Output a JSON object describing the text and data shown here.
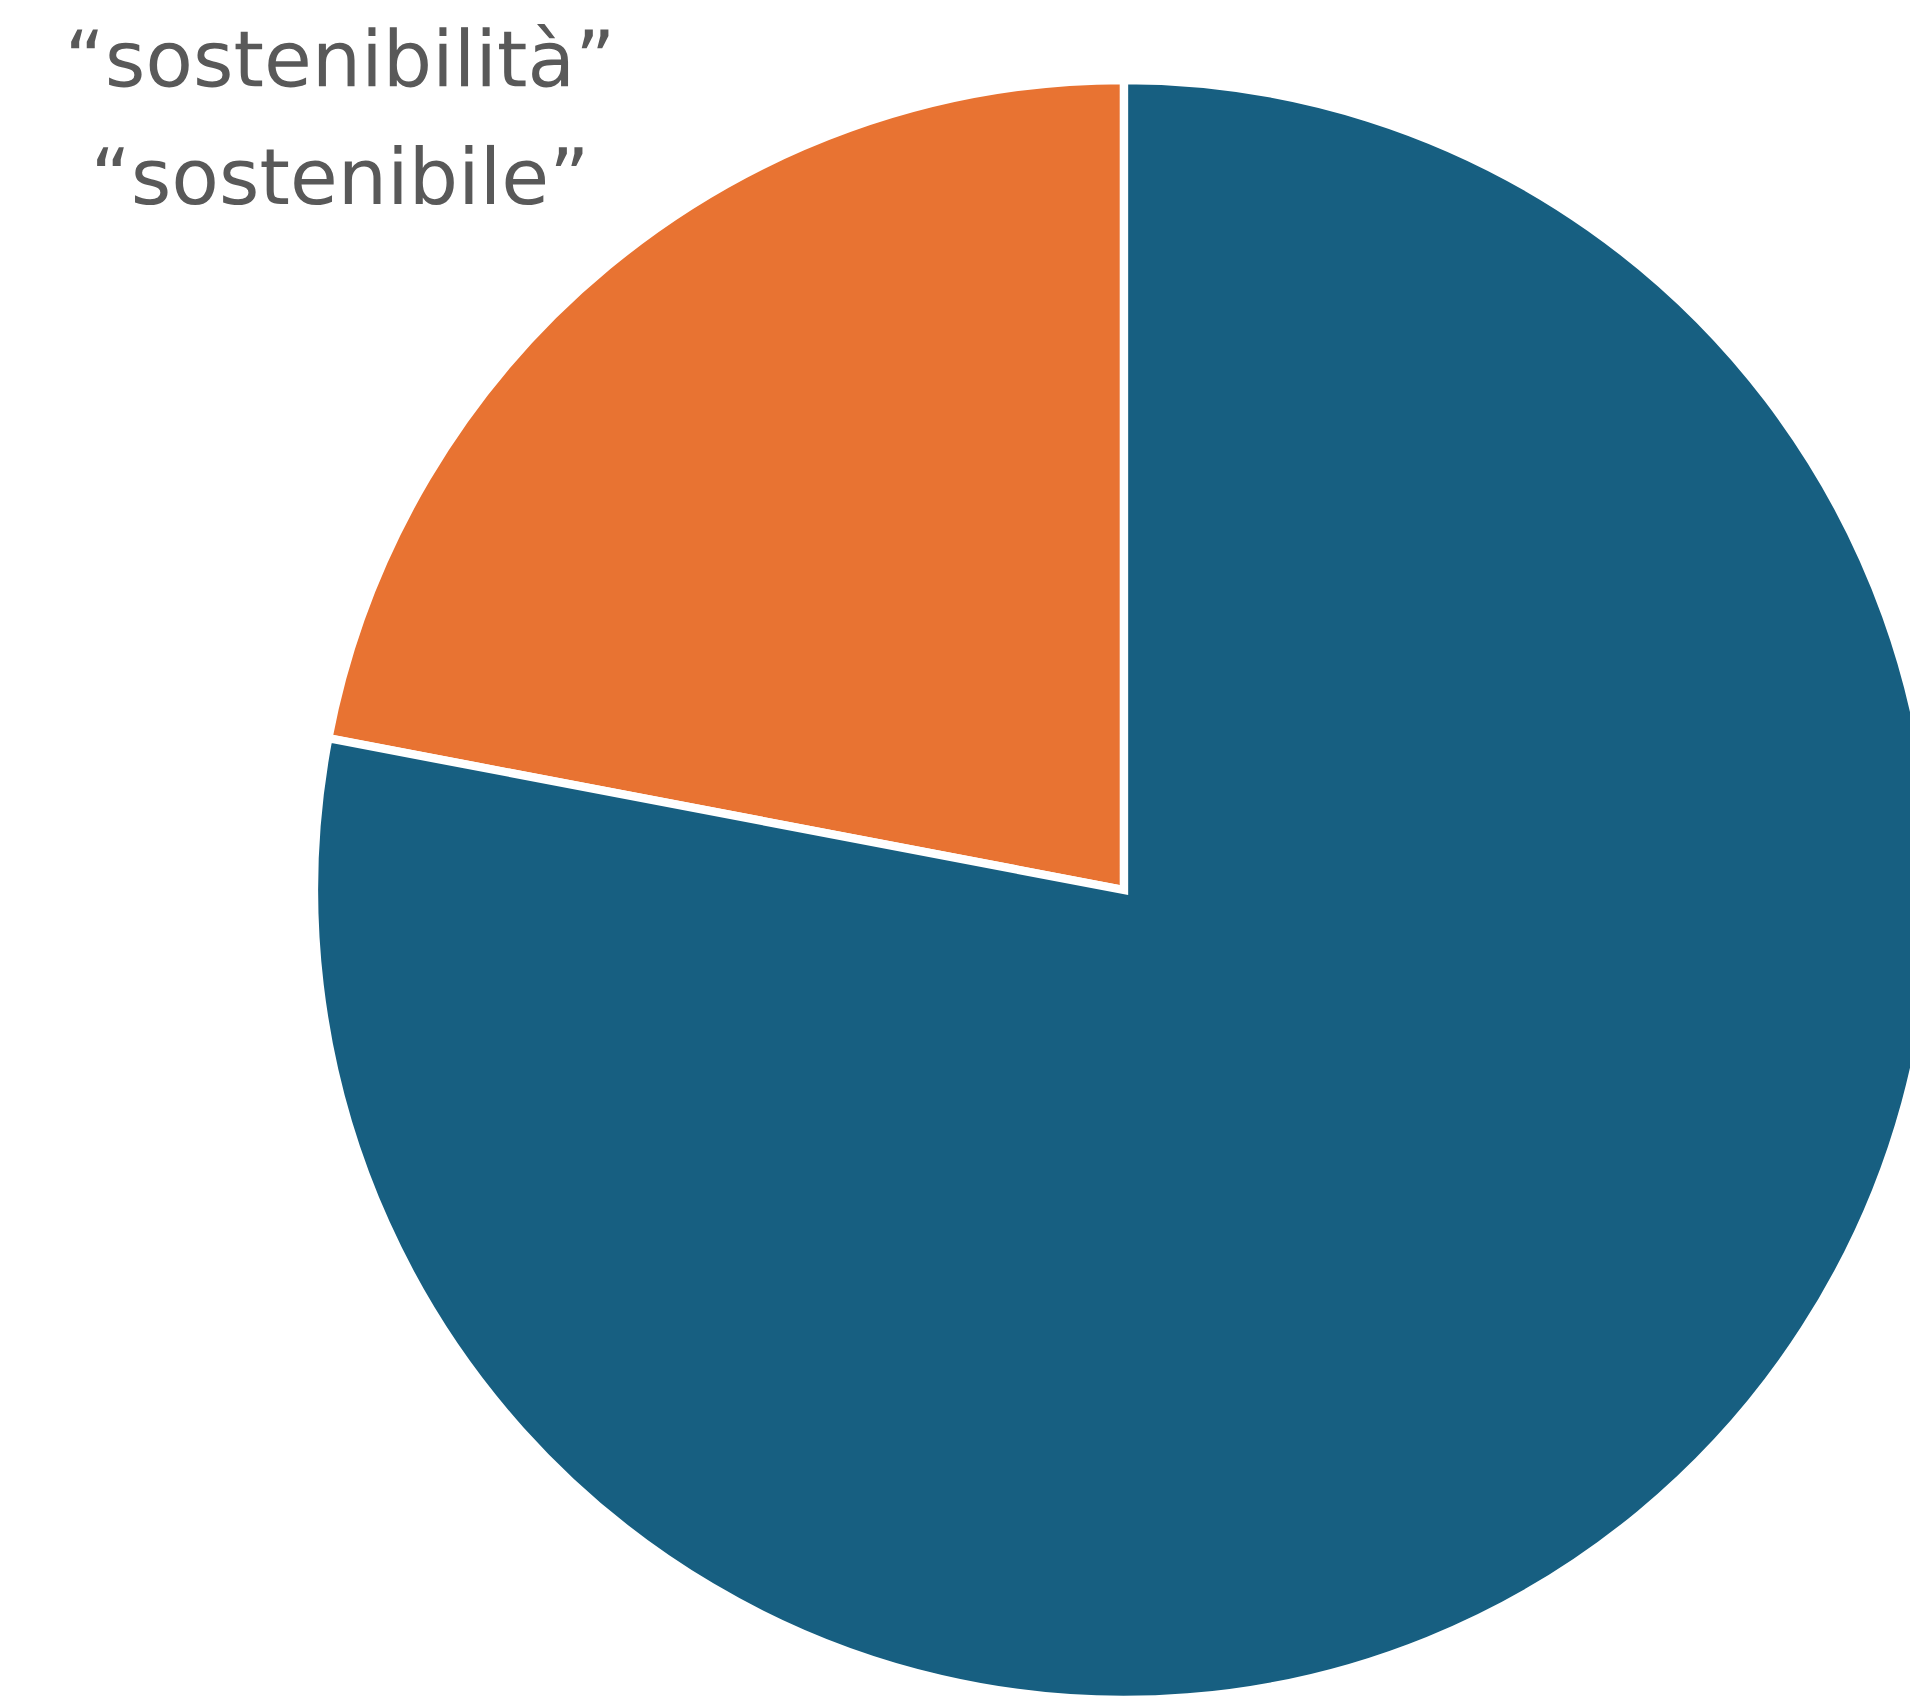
{
  "chart_data": {
    "type": "pie",
    "categories": [
      null,
      null
    ],
    "values": [
      22,
      78
    ],
    "colors": [
      "#e87332",
      "#175f81"
    ],
    "annotations": [
      "“sostenibilità”",
      "“sostenibile”"
    ]
  }
}
